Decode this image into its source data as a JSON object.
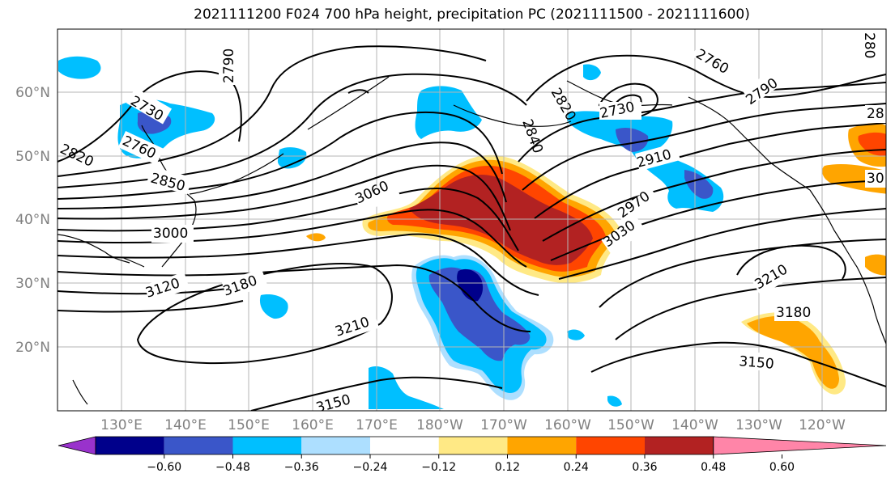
{
  "title": "2021111200 F024 700 hPa height, precipitation PC (2021111500 - 2021111600)",
  "lat_labels": [
    "60°N",
    "50°N",
    "40°N",
    "30°N",
    "20°N"
  ],
  "lon_labels": [
    "130°E",
    "140°E",
    "150°E",
    "160°E",
    "170°E",
    "180°W",
    "170°W",
    "160°W",
    "150°W",
    "140°W",
    "130°W",
    "120°W"
  ],
  "colorbar": {
    "colors": [
      "#9932CC",
      "#00008B",
      "#3A56C9",
      "#00BFFF",
      "#ADDFFF",
      "#FFFFFF",
      "#FFE985",
      "#FFA500",
      "#FF4500",
      "#B22222",
      "#FF85A8"
    ],
    "tick_labels": [
      "−0.60",
      "−0.48",
      "−0.36",
      "−0.24",
      "−0.12",
      "0.12",
      "0.24",
      "0.36",
      "0.48",
      "0.60"
    ]
  },
  "contour_labels": [
    "2790",
    "2730",
    "2760",
    "2820",
    "2850",
    "3000",
    "3060",
    "3120",
    "3180",
    "3210",
    "3150",
    "2820",
    "2760",
    "2790",
    "2730",
    "2910",
    "2840",
    "2970",
    "3030",
    "3210",
    "3180",
    "3150",
    "28",
    "30",
    "280"
  ]
}
